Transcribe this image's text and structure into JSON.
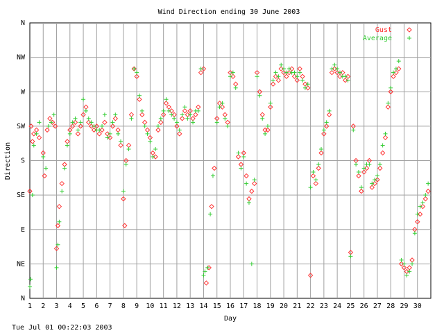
{
  "chart_data": {
    "type": "scatter",
    "title": "Wind Direction ending 30 June 2003",
    "xlabel": "Day",
    "ylabel": "Direction",
    "xlim": [
      1,
      31
    ],
    "ylim": [
      0,
      360
    ],
    "y_ticks": [
      {
        "value": 0,
        "label": "N"
      },
      {
        "value": 45,
        "label": "NE"
      },
      {
        "value": 90,
        "label": "E"
      },
      {
        "value": 135,
        "label": "SE"
      },
      {
        "value": 180,
        "label": "S"
      },
      {
        "value": 225,
        "label": "SW"
      },
      {
        "value": 270,
        "label": "W"
      },
      {
        "value": 315,
        "label": "NW"
      },
      {
        "value": 360,
        "label": "N"
      }
    ],
    "x_ticks": [
      "1",
      "2",
      "3",
      "4",
      "5",
      "6",
      "7",
      "8",
      "9",
      "10",
      "11",
      "12",
      "13",
      "14",
      "15",
      "16",
      "17",
      "18",
      "19",
      "20",
      "21",
      "22",
      "23",
      "24",
      "25",
      "26",
      "27",
      "28",
      "29",
      "30"
    ],
    "grid": true,
    "legend_position": "top-right",
    "footer": "Tue Jul 01 00:22:03 2003",
    "series": [
      {
        "name": "Gust",
        "color": "#ff3333",
        "marker": "diamond",
        "points": [
          [
            1.0,
            140
          ],
          [
            1.1,
            225
          ],
          [
            1.2,
            205
          ],
          [
            1.3,
            215
          ],
          [
            1.5,
            220
          ],
          [
            1.7,
            210
          ],
          [
            2.0,
            190
          ],
          [
            2.1,
            160
          ],
          [
            2.3,
            220
          ],
          [
            2.5,
            235
          ],
          [
            2.7,
            230
          ],
          [
            2.9,
            225
          ],
          [
            3.0,
            65
          ],
          [
            3.1,
            95
          ],
          [
            3.2,
            120
          ],
          [
            3.4,
            150
          ],
          [
            3.6,
            175
          ],
          [
            3.8,
            205
          ],
          [
            4.0,
            220
          ],
          [
            4.2,
            225
          ],
          [
            4.4,
            230
          ],
          [
            4.6,
            215
          ],
          [
            4.8,
            225
          ],
          [
            5.0,
            240
          ],
          [
            5.2,
            250
          ],
          [
            5.4,
            230
          ],
          [
            5.6,
            225
          ],
          [
            5.8,
            220
          ],
          [
            6.0,
            225
          ],
          [
            6.2,
            215
          ],
          [
            6.4,
            220
          ],
          [
            6.6,
            230
          ],
          [
            6.8,
            215
          ],
          [
            7.0,
            210
          ],
          [
            7.2,
            225
          ],
          [
            7.4,
            235
          ],
          [
            7.6,
            220
          ],
          [
            7.8,
            200
          ],
          [
            8.0,
            130
          ],
          [
            8.1,
            95
          ],
          [
            8.2,
            180
          ],
          [
            8.4,
            200
          ],
          [
            8.6,
            240
          ],
          [
            8.8,
            300
          ],
          [
            9.0,
            290
          ],
          [
            9.2,
            260
          ],
          [
            9.4,
            240
          ],
          [
            9.6,
            230
          ],
          [
            9.8,
            220
          ],
          [
            10.0,
            210
          ],
          [
            10.2,
            190
          ],
          [
            10.4,
            185
          ],
          [
            10.6,
            220
          ],
          [
            10.8,
            230
          ],
          [
            11.0,
            240
          ],
          [
            11.2,
            255
          ],
          [
            11.4,
            250
          ],
          [
            11.6,
            245
          ],
          [
            11.8,
            240
          ],
          [
            12.0,
            225
          ],
          [
            12.2,
            215
          ],
          [
            12.4,
            235
          ],
          [
            12.6,
            245
          ],
          [
            12.8,
            240
          ],
          [
            13.0,
            245
          ],
          [
            13.2,
            235
          ],
          [
            13.4,
            240
          ],
          [
            13.6,
            250
          ],
          [
            13.8,
            295
          ],
          [
            14.0,
            300
          ],
          [
            14.2,
            20
          ],
          [
            14.4,
            40
          ],
          [
            14.6,
            120
          ],
          [
            14.8,
            170
          ],
          [
            15.0,
            235
          ],
          [
            15.2,
            255
          ],
          [
            15.4,
            250
          ],
          [
            15.6,
            240
          ],
          [
            15.8,
            230
          ],
          [
            16.0,
            295
          ],
          [
            16.2,
            290
          ],
          [
            16.4,
            280
          ],
          [
            16.6,
            185
          ],
          [
            16.8,
            175
          ],
          [
            17.0,
            190
          ],
          [
            17.2,
            160
          ],
          [
            17.4,
            130
          ],
          [
            17.6,
            140
          ],
          [
            17.8,
            150
          ],
          [
            18.0,
            295
          ],
          [
            18.2,
            270
          ],
          [
            18.4,
            240
          ],
          [
            18.6,
            220
          ],
          [
            18.8,
            220
          ],
          [
            19.0,
            250
          ],
          [
            19.2,
            280
          ],
          [
            19.4,
            290
          ],
          [
            19.6,
            285
          ],
          [
            19.8,
            300
          ],
          [
            20.0,
            295
          ],
          [
            20.2,
            290
          ],
          [
            20.4,
            295
          ],
          [
            20.6,
            300
          ],
          [
            20.8,
            290
          ],
          [
            21.0,
            285
          ],
          [
            21.2,
            300
          ],
          [
            21.4,
            290
          ],
          [
            21.6,
            280
          ],
          [
            21.8,
            275
          ],
          [
            22.0,
            30
          ],
          [
            22.2,
            160
          ],
          [
            22.4,
            150
          ],
          [
            22.6,
            170
          ],
          [
            22.8,
            190
          ],
          [
            23.0,
            215
          ],
          [
            23.2,
            225
          ],
          [
            23.4,
            240
          ],
          [
            23.6,
            295
          ],
          [
            23.8,
            300
          ],
          [
            24.0,
            295
          ],
          [
            24.2,
            290
          ],
          [
            24.4,
            295
          ],
          [
            24.6,
            285
          ],
          [
            24.8,
            290
          ],
          [
            25.0,
            60
          ],
          [
            25.2,
            225
          ],
          [
            25.4,
            180
          ],
          [
            25.6,
            160
          ],
          [
            25.8,
            140
          ],
          [
            26.0,
            165
          ],
          [
            26.2,
            170
          ],
          [
            26.4,
            180
          ],
          [
            26.6,
            145
          ],
          [
            26.8,
            150
          ],
          [
            27.0,
            155
          ],
          [
            27.2,
            170
          ],
          [
            27.4,
            190
          ],
          [
            27.6,
            210
          ],
          [
            27.8,
            250
          ],
          [
            28.0,
            270
          ],
          [
            28.2,
            290
          ],
          [
            28.4,
            295
          ],
          [
            28.6,
            300
          ],
          [
            28.8,
            45
          ],
          [
            29.0,
            40
          ],
          [
            29.2,
            35
          ],
          [
            29.4,
            40
          ],
          [
            29.6,
            50
          ],
          [
            29.8,
            90
          ],
          [
            30.0,
            100
          ],
          [
            30.2,
            110
          ],
          [
            30.4,
            120
          ],
          [
            30.6,
            130
          ],
          [
            30.8,
            140
          ]
        ]
      },
      {
        "name": "Average",
        "color": "#33cc33",
        "marker": "plus",
        "points": [
          [
            1.0,
            15
          ],
          [
            1.05,
            25
          ],
          [
            1.2,
            135
          ],
          [
            1.3,
            200
          ],
          [
            1.5,
            215
          ],
          [
            1.7,
            230
          ],
          [
            2.0,
            185
          ],
          [
            2.2,
            170
          ],
          [
            2.4,
            225
          ],
          [
            2.6,
            230
          ],
          [
            2.8,
            240
          ],
          [
            3.0,
            40
          ],
          [
            3.1,
            70
          ],
          [
            3.2,
            100
          ],
          [
            3.4,
            140
          ],
          [
            3.6,
            170
          ],
          [
            3.8,
            200
          ],
          [
            4.0,
            215
          ],
          [
            4.2,
            230
          ],
          [
            4.4,
            235
          ],
          [
            4.6,
            220
          ],
          [
            4.8,
            230
          ],
          [
            5.0,
            260
          ],
          [
            5.2,
            245
          ],
          [
            5.4,
            235
          ],
          [
            5.6,
            230
          ],
          [
            5.8,
            225
          ],
          [
            6.0,
            220
          ],
          [
            6.2,
            220
          ],
          [
            6.4,
            225
          ],
          [
            6.6,
            240
          ],
          [
            6.8,
            210
          ],
          [
            7.0,
            215
          ],
          [
            7.2,
            230
          ],
          [
            7.4,
            240
          ],
          [
            7.6,
            215
          ],
          [
            7.8,
            205
          ],
          [
            8.0,
            140
          ],
          [
            8.2,
            175
          ],
          [
            8.4,
            195
          ],
          [
            8.6,
            235
          ],
          [
            8.8,
            300
          ],
          [
            9.0,
            295
          ],
          [
            9.2,
            265
          ],
          [
            9.4,
            245
          ],
          [
            9.6,
            225
          ],
          [
            9.8,
            215
          ],
          [
            10.0,
            205
          ],
          [
            10.2,
            185
          ],
          [
            10.4,
            195
          ],
          [
            10.6,
            225
          ],
          [
            10.8,
            235
          ],
          [
            11.0,
            245
          ],
          [
            11.2,
            260
          ],
          [
            11.4,
            245
          ],
          [
            11.6,
            240
          ],
          [
            11.8,
            235
          ],
          [
            12.0,
            230
          ],
          [
            12.2,
            220
          ],
          [
            12.4,
            240
          ],
          [
            12.6,
            250
          ],
          [
            12.8,
            235
          ],
          [
            13.0,
            240
          ],
          [
            13.2,
            230
          ],
          [
            13.4,
            245
          ],
          [
            13.6,
            245
          ],
          [
            13.8,
            300
          ],
          [
            14.0,
            30
          ],
          [
            14.1,
            35
          ],
          [
            14.3,
            40
          ],
          [
            14.5,
            110
          ],
          [
            14.7,
            160
          ],
          [
            15.0,
            230
          ],
          [
            15.2,
            250
          ],
          [
            15.4,
            255
          ],
          [
            15.6,
            235
          ],
          [
            15.8,
            225
          ],
          [
            16.0,
            290
          ],
          [
            16.2,
            295
          ],
          [
            16.4,
            275
          ],
          [
            16.6,
            190
          ],
          [
            16.8,
            170
          ],
          [
            17.0,
            185
          ],
          [
            17.2,
            150
          ],
          [
            17.4,
            125
          ],
          [
            17.6,
            45
          ],
          [
            17.8,
            155
          ],
          [
            18.0,
            290
          ],
          [
            18.2,
            265
          ],
          [
            18.4,
            235
          ],
          [
            18.6,
            215
          ],
          [
            18.8,
            225
          ],
          [
            19.0,
            255
          ],
          [
            19.2,
            285
          ],
          [
            19.4,
            295
          ],
          [
            19.6,
            290
          ],
          [
            19.8,
            305
          ],
          [
            20.0,
            300
          ],
          [
            20.2,
            295
          ],
          [
            20.4,
            300
          ],
          [
            20.6,
            295
          ],
          [
            20.8,
            295
          ],
          [
            21.0,
            290
          ],
          [
            21.2,
            295
          ],
          [
            21.4,
            285
          ],
          [
            21.6,
            275
          ],
          [
            21.8,
            280
          ],
          [
            22.0,
            145
          ],
          [
            22.2,
            165
          ],
          [
            22.4,
            155
          ],
          [
            22.6,
            175
          ],
          [
            22.8,
            195
          ],
          [
            23.0,
            220
          ],
          [
            23.2,
            230
          ],
          [
            23.4,
            245
          ],
          [
            23.6,
            300
          ],
          [
            23.8,
            305
          ],
          [
            24.0,
            300
          ],
          [
            24.2,
            295
          ],
          [
            24.4,
            290
          ],
          [
            24.6,
            290
          ],
          [
            24.8,
            285
          ],
          [
            25.0,
            55
          ],
          [
            25.2,
            220
          ],
          [
            25.4,
            175
          ],
          [
            25.6,
            165
          ],
          [
            25.8,
            145
          ],
          [
            26.0,
            170
          ],
          [
            26.2,
            175
          ],
          [
            26.4,
            175
          ],
          [
            26.6,
            150
          ],
          [
            26.8,
            155
          ],
          [
            27.0,
            160
          ],
          [
            27.2,
            175
          ],
          [
            27.4,
            200
          ],
          [
            27.6,
            215
          ],
          [
            27.8,
            255
          ],
          [
            28.0,
            275
          ],
          [
            28.2,
            295
          ],
          [
            28.4,
            300
          ],
          [
            28.6,
            310
          ],
          [
            28.8,
            50
          ],
          [
            29.0,
            45
          ],
          [
            29.2,
            30
          ],
          [
            29.4,
            35
          ],
          [
            29.6,
            45
          ],
          [
            29.8,
            85
          ],
          [
            30.0,
            110
          ],
          [
            30.2,
            120
          ],
          [
            30.4,
            125
          ],
          [
            30.6,
            135
          ],
          [
            30.8,
            150
          ]
        ]
      }
    ]
  }
}
